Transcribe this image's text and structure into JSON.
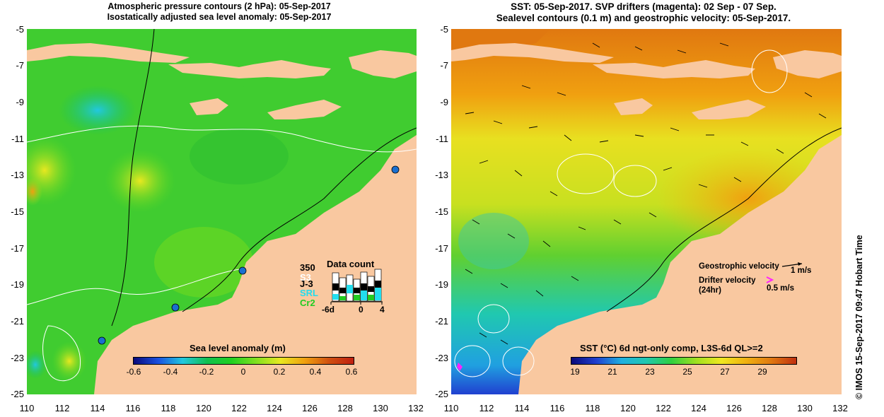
{
  "left_map": {
    "title_line1": "Atmospheric pressure contours (2 hPa): 05-Sep-2017",
    "title_line2": "Isostatically adjusted sea level anomaly: 05-Sep-2017",
    "colorbar_label": "Sea level anomaly (m)",
    "colorbar_ticks": [
      "-0.6",
      "-0.4",
      "-0.2",
      "0",
      "0.2",
      "0.4",
      "0.6"
    ],
    "data_count": {
      "title": "Data count",
      "max_label": "350",
      "satellites": [
        {
          "name": "S3",
          "color": "#ffffff"
        },
        {
          "name": "J-3",
          "color": "#000000"
        },
        {
          "name": "SRL",
          "color": "#22ddee"
        },
        {
          "name": "Cr2",
          "color": "#22cc22"
        }
      ],
      "x_ticks": [
        "-6d",
        "0",
        "4"
      ]
    }
  },
  "right_map": {
    "title_line1": "SST: 05-Sep-2017. SVP drifters (magenta): 02 Sep - 07 Sep.",
    "title_line2": "Sealevel contours (0.1 m) and geostrophic velocity: 05-Sep-2017.",
    "colorbar_label": "SST (°C) 6d ngt-only comp, L3S-6d QL>=2",
    "colorbar_ticks": [
      "19",
      "21",
      "23",
      "25",
      "27",
      "29"
    ],
    "legend": {
      "geostrophic_label": "Geostrophic velocity",
      "geostrophic_scale": "1 m/s",
      "drifter_label_line1": "Drifter velocity",
      "drifter_label_line2": "(24hr)",
      "drifter_scale": "0.5 m/s"
    }
  },
  "axes": {
    "y_ticks": [
      "-5",
      "-7",
      "-9",
      "-11",
      "-13",
      "-15",
      "-17",
      "-19",
      "-21",
      "-23",
      "-25"
    ],
    "x_ticks": [
      "110",
      "112",
      "114",
      "116",
      "118",
      "120",
      "122",
      "124",
      "126",
      "128",
      "130",
      "132"
    ]
  },
  "side_text": "© IMOS 15-Sep-2017 09:47 Hobart Time",
  "colors": {
    "land": "#f9c8a0",
    "sla_gradient": [
      "#0a0a7a",
      "#1a50e0",
      "#22c8e0",
      "#10c050",
      "#20d020",
      "#80e020",
      "#e8e820",
      "#f0a010",
      "#d05010",
      "#c02010"
    ],
    "sst_gradient": [
      "#0a0a7a",
      "#2040d0",
      "#20b0e0",
      "#20c8b0",
      "#30d040",
      "#a0e020",
      "#f0e820",
      "#f0b010",
      "#e07810",
      "#c03010"
    ],
    "drifter": "#ff22ff",
    "tide_gauge": "#1a6fd0"
  }
}
